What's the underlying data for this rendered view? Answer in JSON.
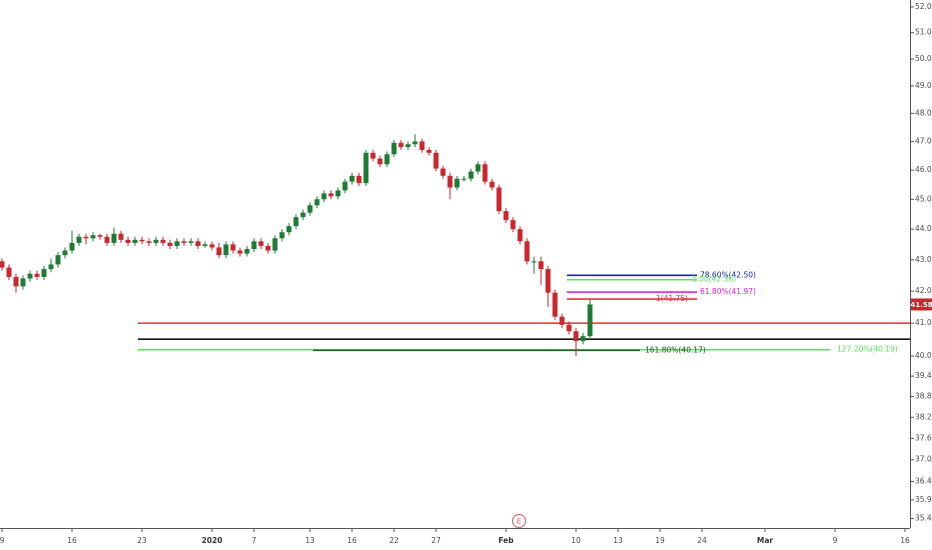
{
  "chart_data": {
    "type": "candlestick",
    "log_scale": true,
    "grid": false,
    "up_color": "#1e7b34",
    "down_color": "#c9262e",
    "ylim": [
      35.15,
      52.27
    ],
    "yticks": [
      {
        "value": 52,
        "label": "52.00"
      },
      {
        "value": 51,
        "label": "51.00"
      },
      {
        "value": 50,
        "label": "50.00"
      },
      {
        "value": 49,
        "label": "49.00"
      },
      {
        "value": 48,
        "label": "48.00"
      },
      {
        "value": 47,
        "label": "47.00"
      },
      {
        "value": 46,
        "label": "46.00"
      },
      {
        "value": 45,
        "label": "45.00"
      },
      {
        "value": 44,
        "label": "44.00"
      },
      {
        "value": 43,
        "label": "43.00"
      },
      {
        "value": 42,
        "label": "42.00"
      },
      {
        "value": 41,
        "label": "41.00"
      },
      {
        "value": 40,
        "label": "40.00"
      },
      {
        "value": 39.4,
        "label": "39.40"
      },
      {
        "value": 38.8,
        "label": "38.80"
      },
      {
        "value": 38.2,
        "label": "38.20"
      },
      {
        "value": 37.6,
        "label": "37.60"
      },
      {
        "value": 37,
        "label": "37.00"
      },
      {
        "value": 36.4,
        "label": "36.40"
      },
      {
        "value": 35.9,
        "label": "35.90"
      },
      {
        "value": 35.4,
        "label": "35.40"
      }
    ],
    "categories": [
      "9",
      null,
      null,
      null,
      null,
      null,
      null,
      null,
      null,
      null,
      "16",
      null,
      null,
      null,
      null,
      null,
      null,
      null,
      null,
      null,
      "23",
      null,
      null,
      null,
      null,
      null,
      null,
      null,
      null,
      null,
      "2020",
      null,
      null,
      null,
      null,
      null,
      "7",
      null,
      null,
      null,
      null,
      null,
      null,
      null,
      "13",
      null,
      null,
      null,
      null,
      null,
      "16",
      null,
      null,
      null,
      null,
      null,
      "22",
      null,
      null,
      null,
      null,
      null,
      "27",
      null,
      null,
      null,
      null,
      null,
      null,
      null,
      null,
      null,
      "Feb",
      null,
      null,
      null,
      null,
      null,
      null,
      null,
      null,
      null,
      "10",
      null,
      null,
      null,
      null,
      null,
      "13",
      null,
      null,
      null,
      null,
      null,
      "19",
      null,
      null,
      null,
      null,
      null,
      "24",
      null,
      null,
      null,
      null,
      null,
      null,
      null,
      null,
      "Mar",
      null,
      null,
      null,
      null,
      null,
      null,
      null,
      null,
      null,
      "9",
      null,
      null,
      null,
      null,
      null,
      null,
      null,
      null,
      null,
      "16"
    ],
    "open": [
      42.95,
      42.75,
      42.45,
      42.15,
      42.4,
      42.55,
      42.45,
      42.7,
      42.85,
      43.15,
      43.3,
      43.55,
      43.75,
      43.7,
      43.8,
      43.75,
      43.55,
      43.85,
      43.65,
      43.55,
      43.65,
      43.6,
      43.55,
      43.65,
      43.55,
      43.45,
      43.6,
      43.55,
      43.6,
      43.45,
      43.5,
      43.4,
      43.15,
      43.5,
      43.3,
      43.2,
      43.35,
      43.6,
      43.45,
      43.3,
      43.7,
      43.9,
      44.1,
      44.4,
      44.55,
      44.8,
      45.0,
      45.2,
      45.1,
      45.3,
      45.6,
      45.8,
      45.55,
      46.6,
      46.4,
      46.2,
      46.55,
      46.95,
      46.8,
      46.9,
      47.0,
      46.7,
      46.6,
      46.05,
      45.8,
      45.4,
      45.7,
      45.7,
      45.95,
      46.2,
      45.6,
      45.4,
      44.6,
      44.3,
      44.0,
      43.6,
      42.95,
      42.95,
      42.7,
      41.95,
      41.2,
      40.95,
      40.75,
      40.45,
      40.6,
      null,
      null,
      null,
      null,
      null,
      null,
      null,
      null,
      null,
      null,
      null,
      null,
      null,
      null,
      null,
      null,
      null,
      null,
      null,
      null,
      null,
      null,
      null,
      null,
      null,
      null,
      null,
      null,
      null,
      null,
      null,
      null,
      null,
      null,
      null,
      null,
      null,
      null,
      null,
      null,
      null,
      null,
      null,
      null,
      null
    ],
    "high": [
      43.05,
      42.85,
      42.55,
      42.5,
      42.65,
      42.65,
      42.8,
      43.05,
      43.25,
      43.4,
      43.95,
      43.85,
      43.85,
      43.9,
      43.85,
      43.85,
      44.05,
      43.95,
      43.75,
      43.75,
      43.75,
      43.7,
      43.75,
      43.75,
      43.65,
      43.7,
      43.7,
      43.7,
      43.7,
      43.6,
      43.6,
      43.55,
      43.6,
      43.6,
      43.4,
      43.45,
      43.7,
      43.7,
      43.55,
      43.8,
      44.0,
      44.2,
      44.5,
      44.65,
      44.9,
      45.1,
      45.3,
      45.3,
      45.4,
      45.7,
      45.9,
      45.9,
      46.7,
      46.7,
      46.5,
      46.65,
      47.05,
      47.05,
      47.0,
      47.25,
      47.1,
      46.8,
      46.7,
      46.15,
      45.9,
      45.8,
      45.8,
      46.05,
      46.3,
      46.3,
      45.7,
      45.5,
      44.7,
      44.4,
      44.1,
      43.7,
      43.1,
      43.1,
      42.8,
      42.05,
      41.3,
      41.05,
      40.85,
      40.7,
      41.75,
      null,
      null,
      null,
      null,
      null,
      null,
      null,
      null,
      null,
      null,
      null,
      null,
      null,
      null,
      null,
      null,
      null,
      null,
      null,
      null,
      null,
      null,
      null,
      null,
      null,
      null,
      null,
      null,
      null,
      null,
      null,
      null,
      null,
      null,
      null,
      null,
      null,
      null,
      null,
      null,
      null,
      null,
      null,
      null,
      null
    ],
    "low": [
      42.65,
      42.35,
      41.95,
      42.05,
      42.3,
      42.35,
      42.35,
      42.6,
      42.75,
      43.05,
      43.2,
      43.45,
      43.5,
      43.6,
      43.65,
      43.45,
      43.45,
      43.55,
      43.45,
      43.45,
      43.5,
      43.45,
      43.45,
      43.45,
      43.35,
      43.35,
      43.45,
      43.45,
      43.35,
      43.4,
      43.3,
      43.05,
      43.05,
      43.2,
      43.1,
      43.1,
      43.25,
      43.35,
      43.2,
      43.2,
      43.6,
      43.8,
      44.0,
      44.3,
      44.45,
      44.7,
      44.9,
      45.0,
      45.0,
      45.2,
      45.5,
      45.45,
      45.45,
      46.3,
      46.1,
      46.1,
      46.45,
      46.7,
      46.7,
      46.8,
      46.6,
      46.5,
      45.95,
      45.7,
      45.0,
      45.3,
      45.6,
      45.6,
      45.85,
      45.5,
      45.3,
      44.5,
      44.2,
      43.9,
      43.5,
      42.85,
      42.55,
      42.2,
      41.5,
      41.1,
      40.85,
      40.65,
      40.0,
      40.35,
      40.5,
      null,
      null,
      null,
      null,
      null,
      null,
      null,
      null,
      null,
      null,
      null,
      null,
      null,
      null,
      null,
      null,
      null,
      null,
      null,
      null,
      null,
      null,
      null,
      null,
      null,
      null,
      null,
      null,
      null,
      null,
      null,
      null,
      null,
      null,
      null,
      null,
      null,
      null,
      null,
      null,
      null,
      null,
      null,
      null,
      null
    ],
    "close": [
      42.75,
      42.45,
      42.15,
      42.4,
      42.55,
      42.45,
      42.7,
      42.85,
      43.15,
      43.3,
      43.55,
      43.75,
      43.7,
      43.8,
      43.75,
      43.55,
      43.85,
      43.65,
      43.55,
      43.65,
      43.6,
      43.55,
      43.65,
      43.55,
      43.45,
      43.6,
      43.55,
      43.6,
      43.45,
      43.5,
      43.4,
      43.15,
      43.5,
      43.3,
      43.2,
      43.35,
      43.6,
      43.45,
      43.3,
      43.7,
      43.9,
      44.1,
      44.4,
      44.55,
      44.8,
      45.0,
      45.2,
      45.1,
      45.3,
      45.6,
      45.8,
      45.55,
      46.6,
      46.4,
      46.2,
      46.55,
      46.95,
      46.8,
      46.9,
      47.0,
      46.7,
      46.6,
      46.05,
      45.8,
      45.4,
      45.7,
      45.7,
      45.95,
      46.2,
      45.6,
      45.4,
      44.6,
      44.3,
      44.0,
      43.6,
      42.95,
      42.95,
      42.7,
      41.95,
      41.2,
      40.95,
      40.75,
      40.45,
      40.6,
      41.58,
      null,
      null,
      null,
      null,
      null,
      null,
      null,
      null,
      null,
      null,
      null,
      null,
      null,
      null,
      null,
      null,
      null,
      null,
      null,
      null,
      null,
      null,
      null,
      null,
      null,
      null,
      null,
      null,
      null,
      null,
      null,
      null,
      null,
      null,
      null,
      null,
      null,
      null,
      null,
      null,
      null,
      null,
      null,
      null,
      null
    ],
    "levels": [
      {
        "value": 42.5,
        "label": "78.60%(42.50)",
        "color": "#1320b0"
      },
      {
        "value": 42.36,
        "label": "1.00(42.36)",
        "color": "#5ee35e"
      },
      {
        "value": 41.97,
        "label": "61.80%(41.97)",
        "color": "#e020e0"
      },
      {
        "value": 41.75,
        "label": "1(41.75)",
        "color": "#e8343c"
      },
      {
        "value": 41.0,
        "color": "#f23a3a"
      },
      {
        "value": 40.51,
        "color": "#111111"
      },
      {
        "value": 40.19,
        "label": "127.20%(40.19)",
        "color": "#4ee84e"
      },
      {
        "value": 40.17,
        "label": "161.80%(40.17)",
        "color": "#1a5c1a"
      }
    ],
    "event_label": "E"
  }
}
